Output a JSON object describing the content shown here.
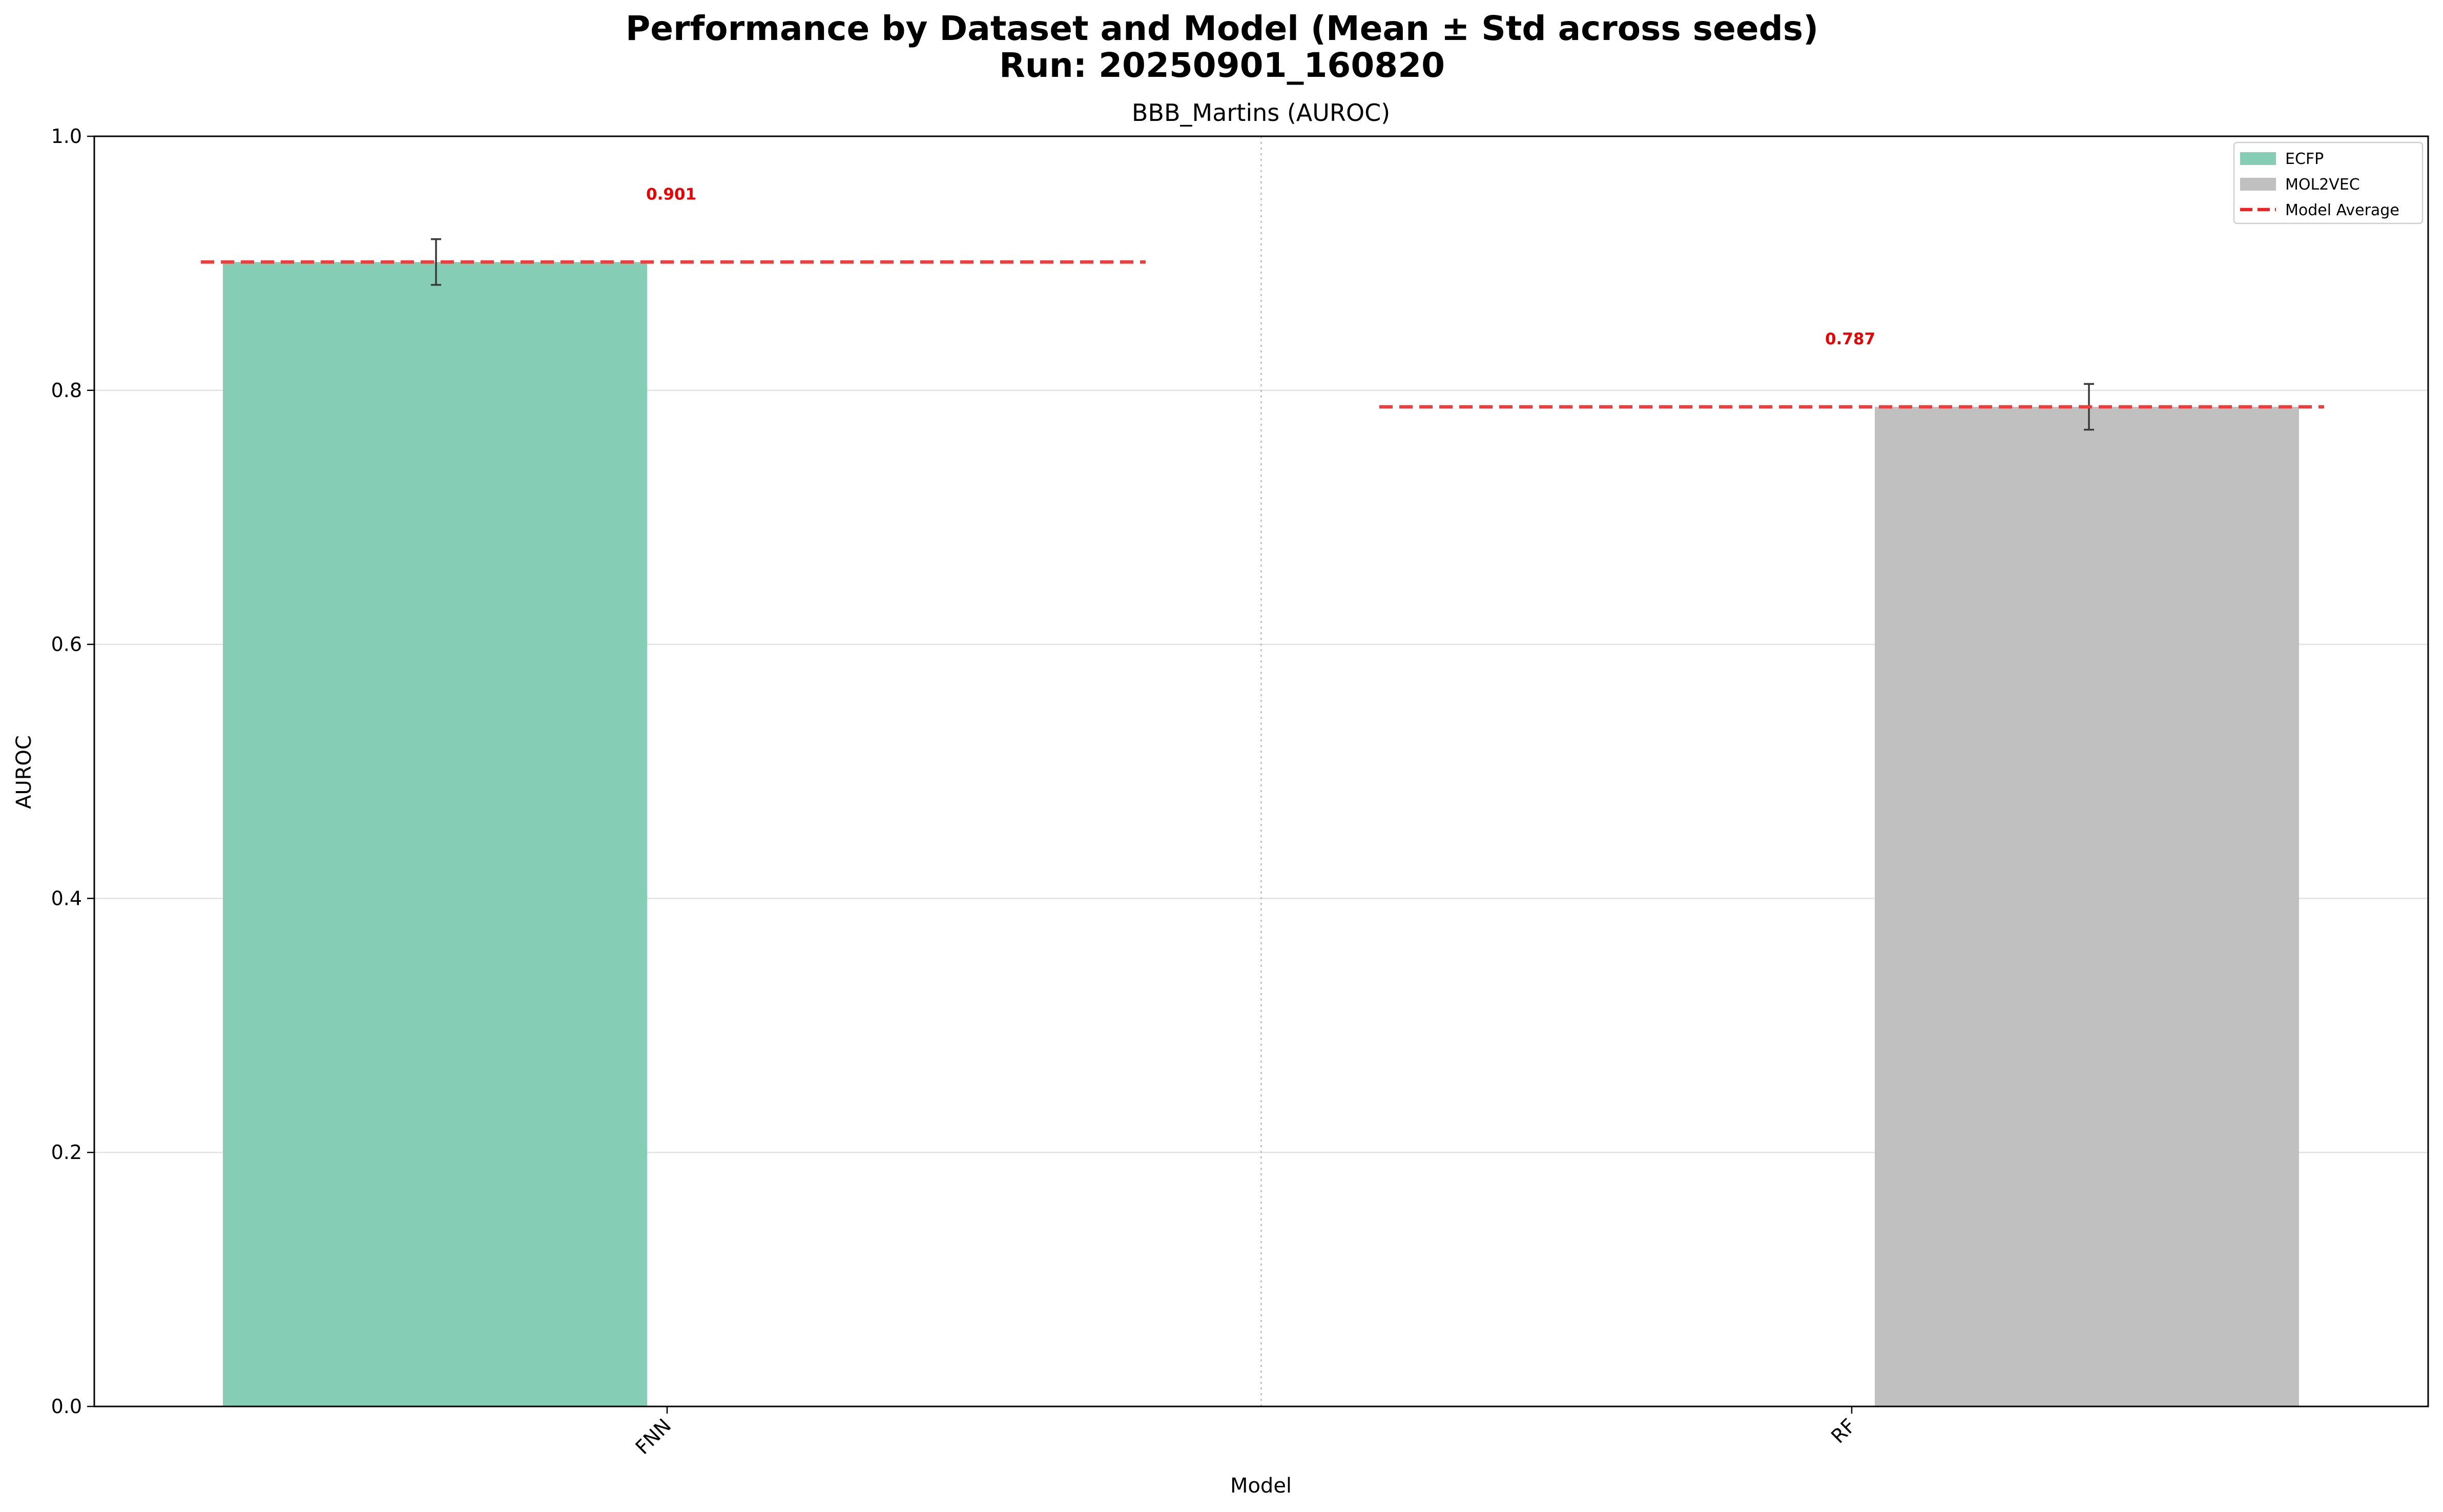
{
  "chart_data": {
    "type": "bar",
    "title": "Performance by Dataset and Model (Mean ± Std across seeds)",
    "subtitle": "Run: 20250901_160820",
    "axes_title": "BBB_Martins (AUROC)",
    "xlabel": "Model",
    "ylabel": "AUROC",
    "ylim": [
      0,
      1.0
    ],
    "yticks": [
      "0.0",
      "0.2",
      "0.4",
      "0.6",
      "0.8",
      "1.0"
    ],
    "categories": [
      "FNN",
      "RF"
    ],
    "grid": "horizontal",
    "legend_position": "top-right",
    "series": [
      {
        "name": "ECFP",
        "color": "#86cdb5",
        "values": [
          0.901,
          0
        ],
        "errors": [
          0.018,
          0
        ]
      },
      {
        "name": "MOL2VEC",
        "color": "#c0c0c0",
        "values": [
          0,
          0.787
        ],
        "errors": [
          0,
          0.018
        ]
      }
    ],
    "model_average": {
      "name": "Model Average",
      "color": "#f03c3c",
      "values": [
        0.901,
        0.787
      ],
      "labels": [
        "0.901",
        "0.787"
      ]
    }
  }
}
